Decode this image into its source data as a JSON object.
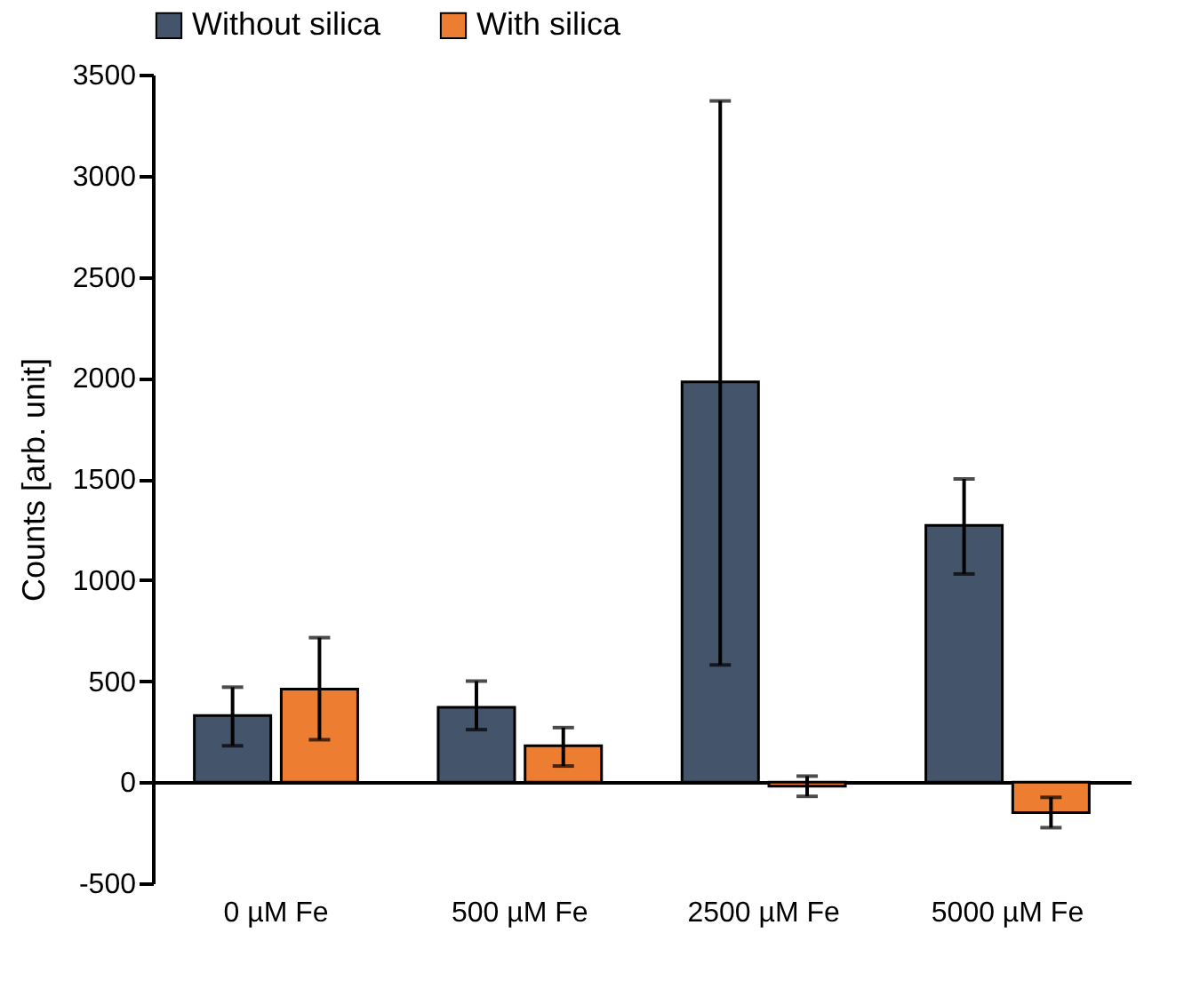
{
  "chart_data": {
    "type": "bar",
    "ylabel": "Counts [arb. unit]",
    "categories": [
      "0 µM Fe",
      "500 µM Fe",
      "2500 µM Fe",
      "5000 µM Fe"
    ],
    "series": [
      {
        "name": "Without silica",
        "color": "#44546a",
        "values": [
          330,
          370,
          1980,
          1270
        ],
        "errors": [
          [
            180,
            470
          ],
          [
            260,
            500
          ],
          [
            580,
            3370
          ],
          [
            1030,
            1500
          ]
        ]
      },
      {
        "name": "With silica",
        "color": "#ed7d31",
        "values": [
          460,
          180,
          -20,
          -150
        ],
        "errors": [
          [
            210,
            715
          ],
          [
            80,
            270
          ],
          [
            -70,
            30
          ],
          [
            -225,
            -75
          ]
        ]
      }
    ],
    "ylim": [
      -500,
      3500
    ],
    "yticks": [
      -500,
      0,
      500,
      1000,
      1500,
      2000,
      2500,
      3000,
      3500
    ],
    "legend": "top"
  }
}
